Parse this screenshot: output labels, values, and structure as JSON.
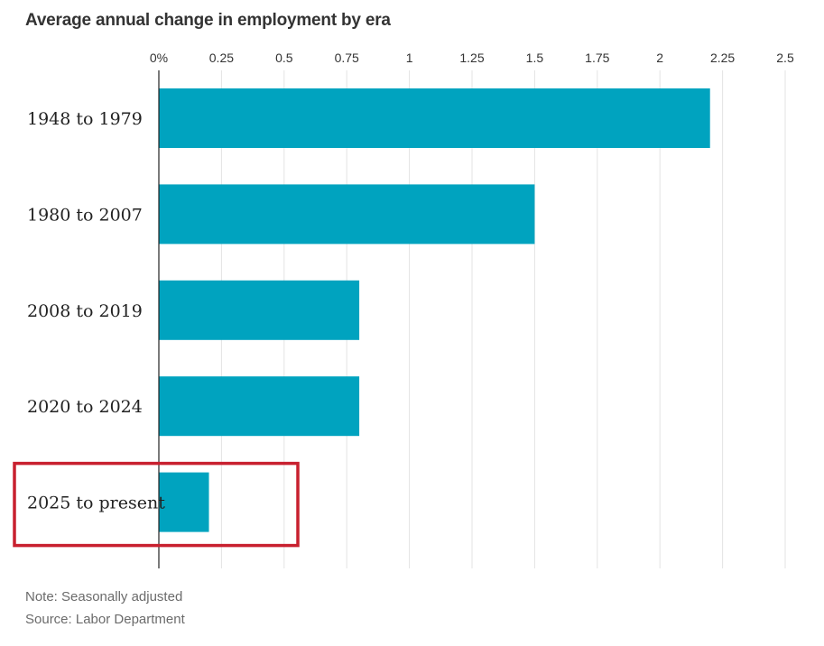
{
  "chart_data": {
    "type": "bar",
    "orientation": "horizontal",
    "title": "Average annual change in employment by era",
    "categories": [
      "1948 to 1979",
      "1980 to 2007",
      "2008 to 2019",
      "2020 to 2024",
      "2025 to present"
    ],
    "values": [
      2.2,
      1.5,
      0.8,
      0.8,
      0.2
    ],
    "xlim": [
      0,
      2.5
    ],
    "xticks": [
      "0%",
      "0.25",
      "0.5",
      "0.75",
      "1",
      "1.25",
      "1.5",
      "1.75",
      "2",
      "2.25",
      "2.5"
    ],
    "grid": true,
    "highlight_category": "2025 to present",
    "notes": {
      "note": "Note: Seasonally adjusted",
      "source": "Source: Labor Department"
    }
  },
  "colors": {
    "bar": "#00a3bf",
    "highlight_box": "#c8202f",
    "grid": "#e3e3e3",
    "axis": "#222222"
  }
}
